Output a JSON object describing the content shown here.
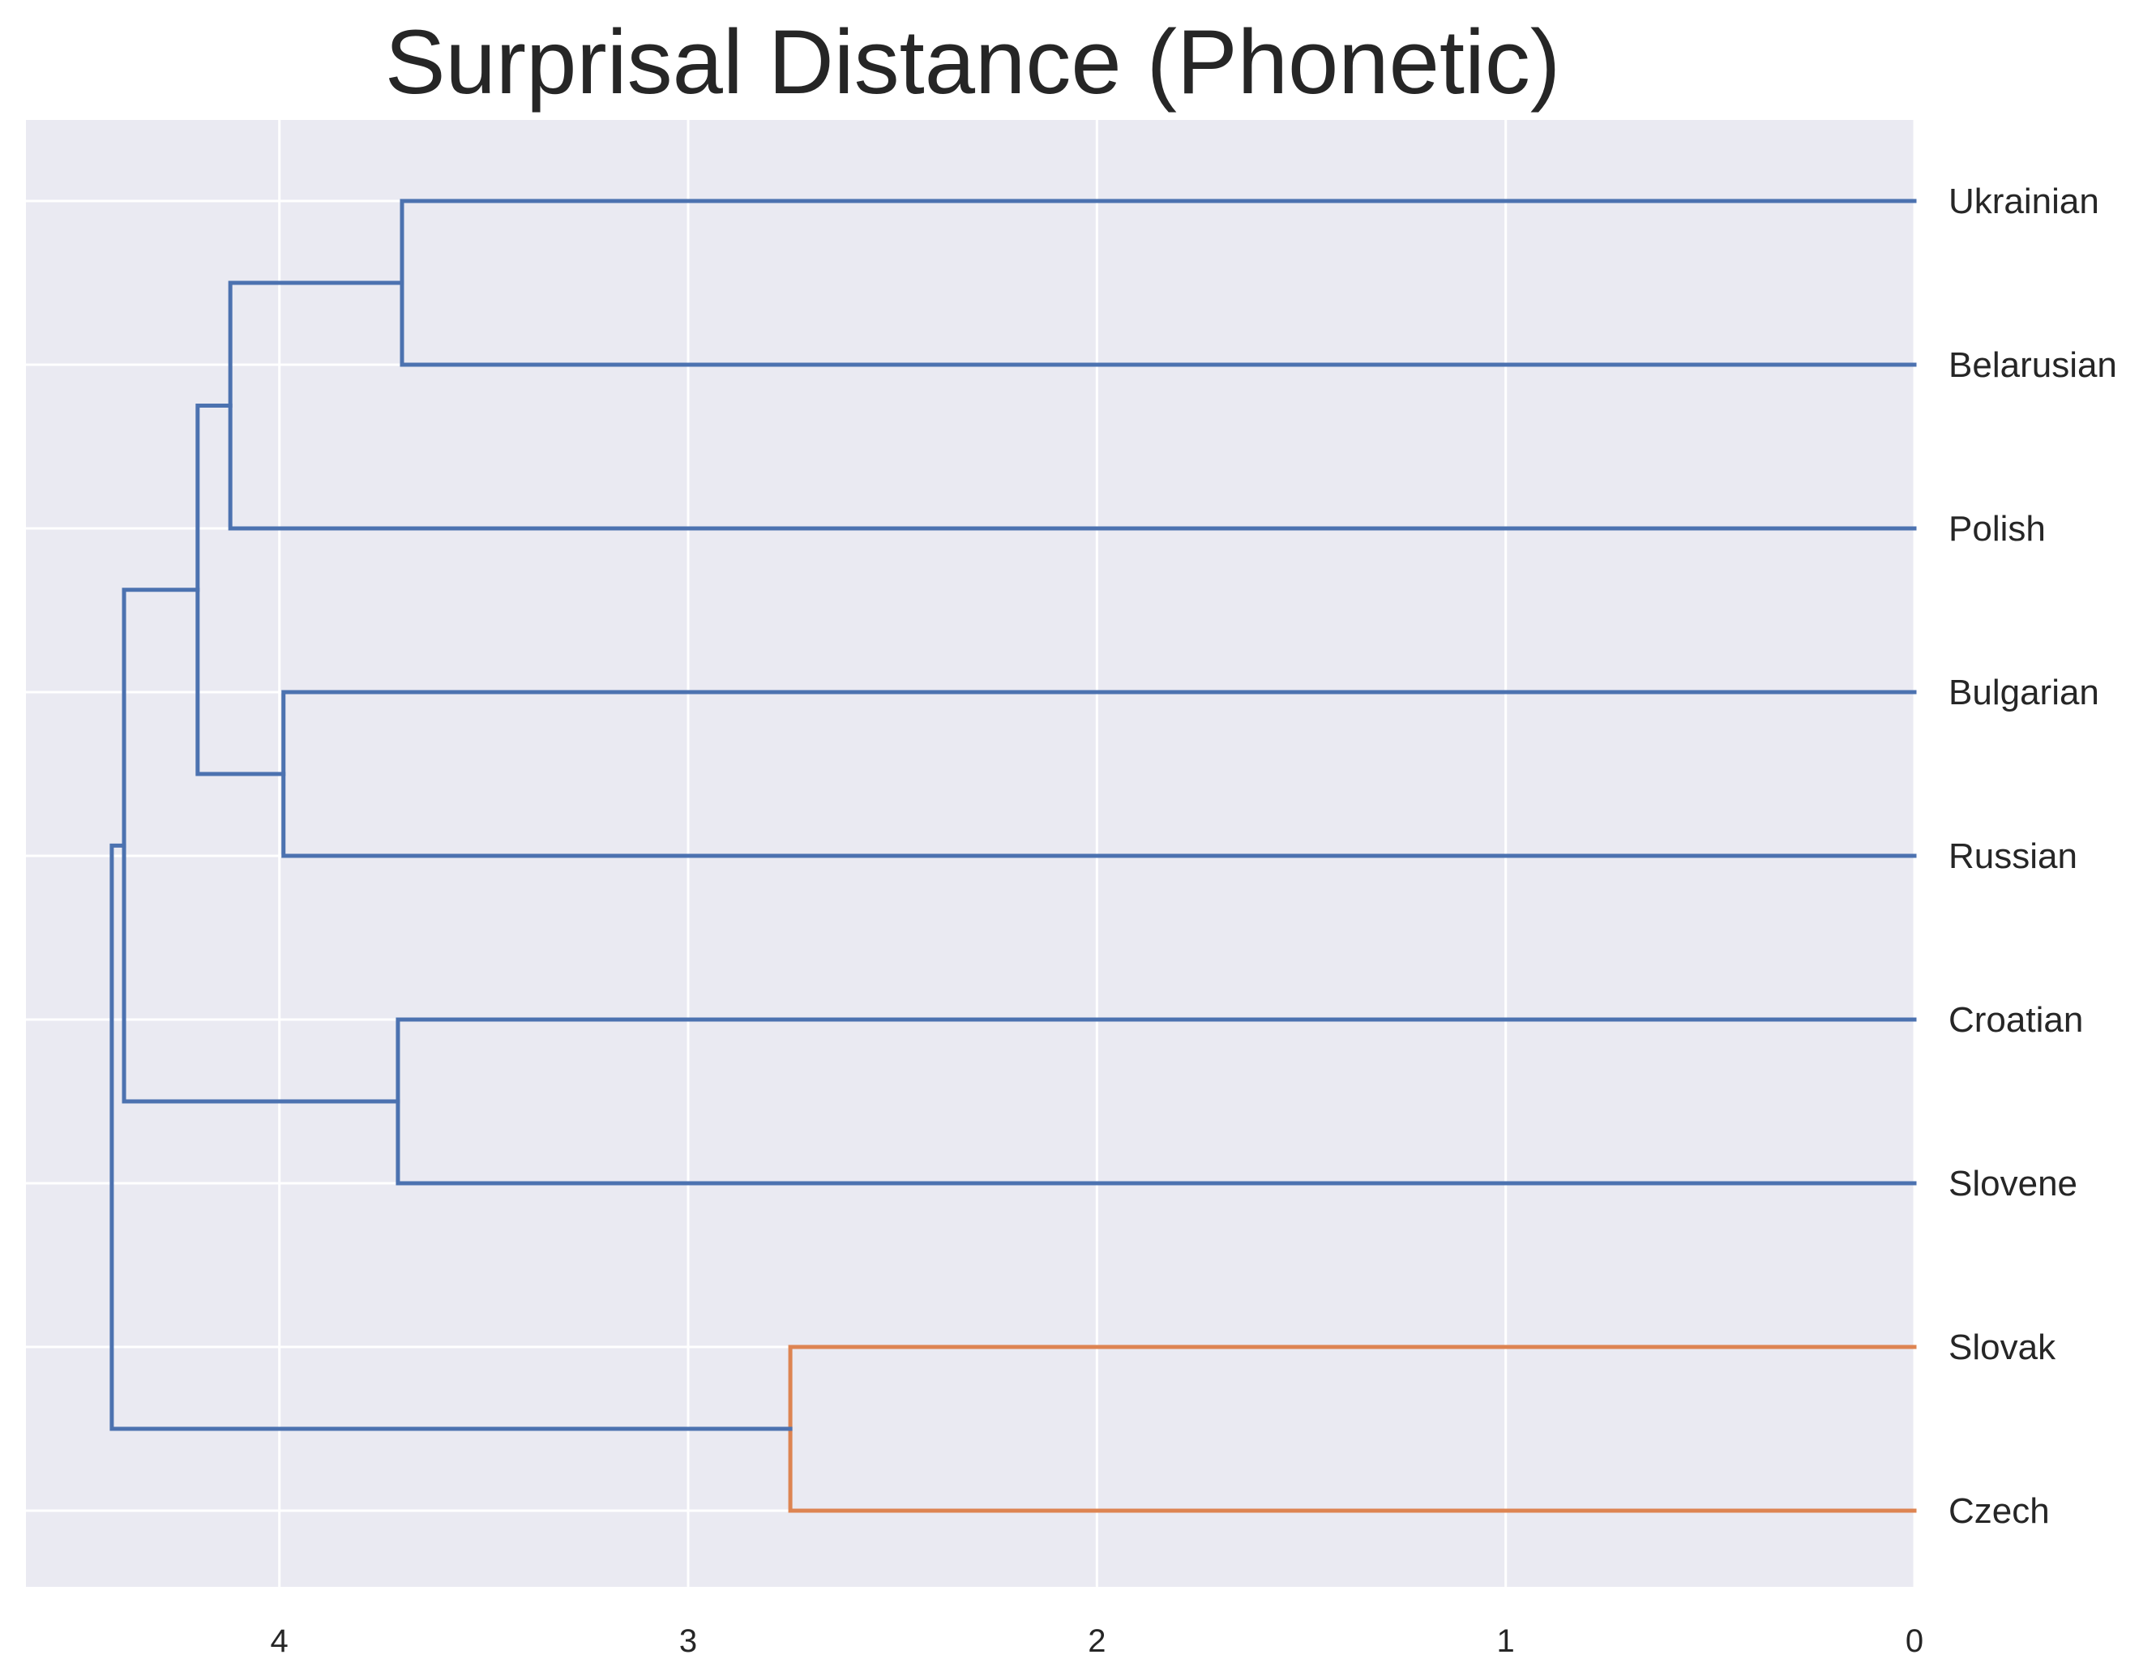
{
  "chart_data": {
    "type": "dendrogram",
    "title": "Surprisal Distance (Phonetic)",
    "orientation": "left",
    "xlabel": "",
    "ylabel": "",
    "xlim": [
      4.62,
      0
    ],
    "x_ticks": [
      4,
      3,
      2,
      1,
      0
    ],
    "grid": true,
    "background_color": "#eaeaf2",
    "leaves": [
      "Ukrainian",
      "Belarusian",
      "Polish",
      "Bulgarian",
      "Russian",
      "Croatian",
      "Slovene",
      "Slovak",
      "Czech"
    ],
    "links": [
      {
        "a": "Ukrainian",
        "b": "Belarusian",
        "distance": 3.7,
        "color": "#4c72b0"
      },
      {
        "a": "Ukrainian+Belarusian",
        "b": "Polish",
        "distance": 4.12,
        "color": "#4c72b0"
      },
      {
        "a": "Bulgarian",
        "b": "Russian",
        "distance": 3.99,
        "color": "#4c72b0"
      },
      {
        "a": "Ukrainian+Belarusian+Polish",
        "b": "Bulgarian+Russian",
        "distance": 4.2,
        "color": "#4c72b0"
      },
      {
        "a": "Croatian",
        "b": "Slovene",
        "distance": 3.71,
        "color": "#4c72b0"
      },
      {
        "a": "East+South group",
        "b": "Croatian+Slovene",
        "distance": 4.38,
        "color": "#4c72b0"
      },
      {
        "a": "Slovak",
        "b": "Czech",
        "distance": 2.75,
        "color": "#dd8452"
      },
      {
        "a": "All others",
        "b": "Slovak+Czech",
        "distance": 4.41,
        "color": "#4c72b0"
      }
    ]
  }
}
